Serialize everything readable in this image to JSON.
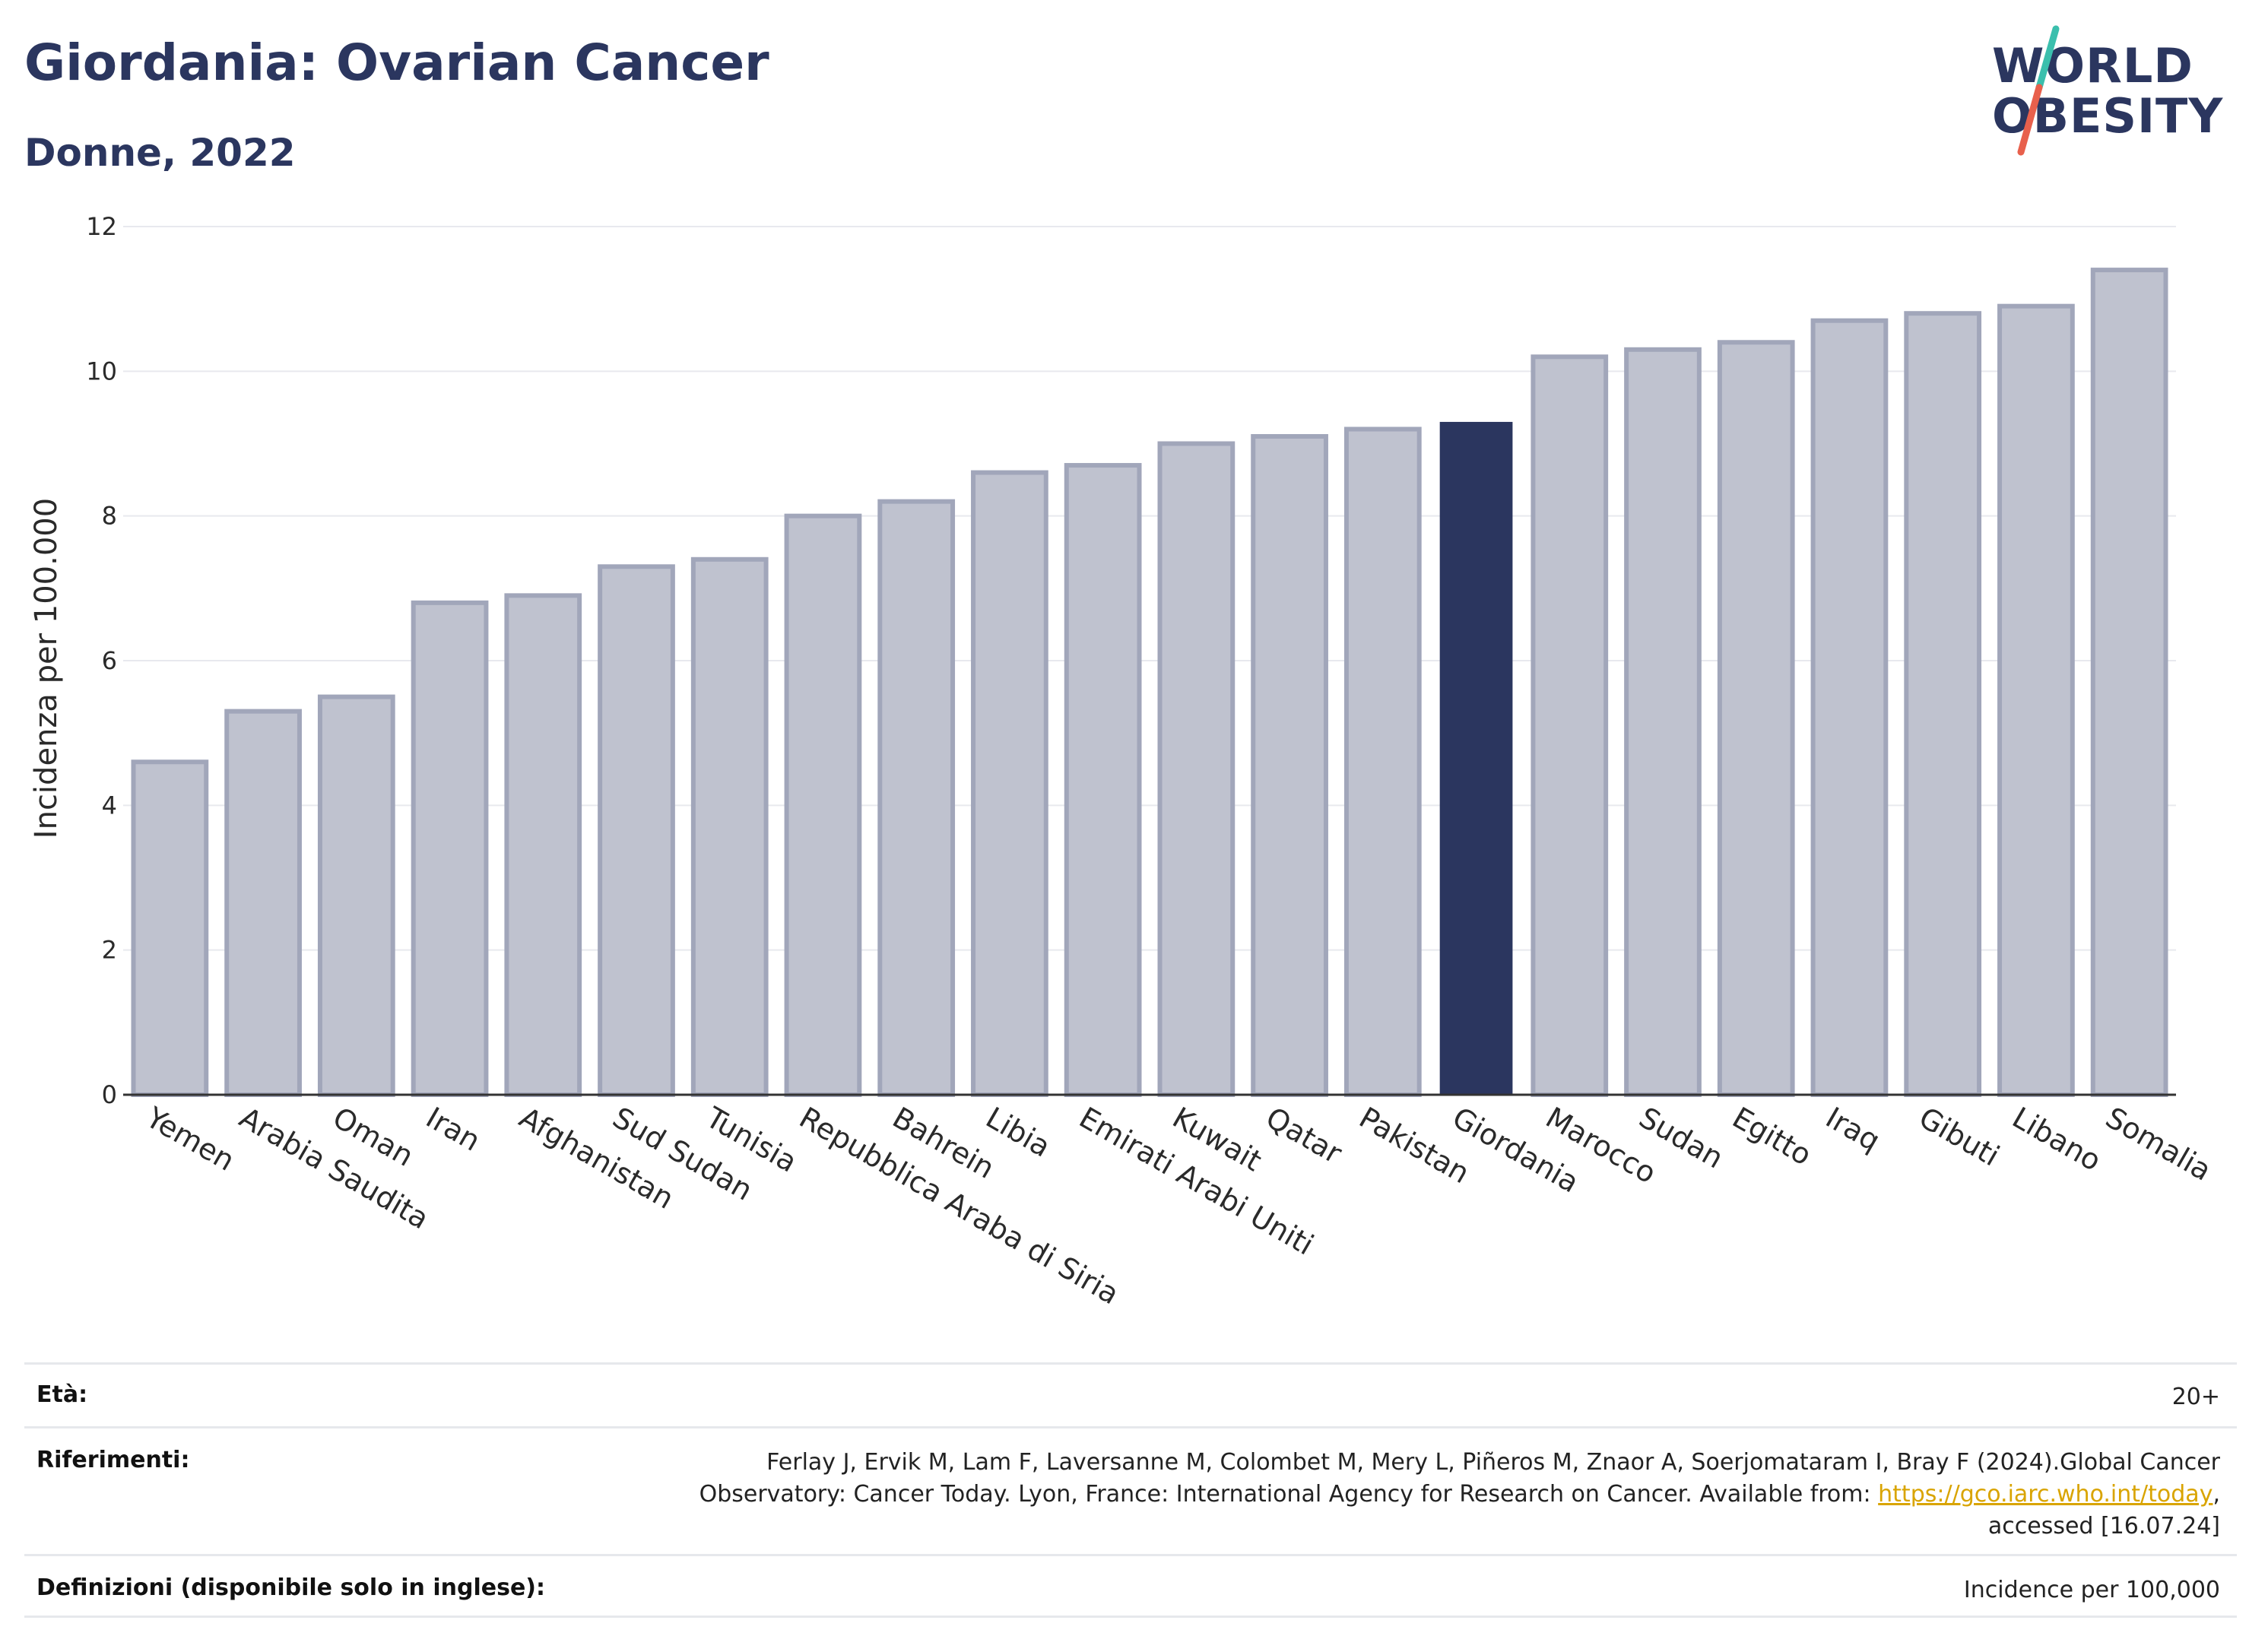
{
  "header": {
    "title": "Giordania: Ovarian Cancer",
    "subtitle": "Donne, 2022"
  },
  "logo": {
    "line1": "WORLD",
    "line2": "OBESITY"
  },
  "chart_data": {
    "type": "bar",
    "ylabel": "Incidenza per 100.000",
    "ylim": [
      0,
      12
    ],
    "yticks": [
      0,
      2,
      4,
      6,
      8,
      10,
      12
    ],
    "grid": true,
    "highlight": "Giordania",
    "colors": {
      "bar": "#bfc2cf",
      "bar_edge": "#a1a6ba",
      "highlight": "#2b365f"
    },
    "categories": [
      "Yemen",
      "Arabia Saudita",
      "Oman",
      "Iran",
      "Afghanistan",
      "Sud Sudan",
      "Tunisia",
      "Repubblica Araba di Siria",
      "Bahrein",
      "Libia",
      "Emirati Arabi Uniti",
      "Kuwait",
      "Qatar",
      "Pakistan",
      "Giordania",
      "Marocco",
      "Sudan",
      "Egitto",
      "Iraq",
      "Gibuti",
      "Libano",
      "Somalia"
    ],
    "values": [
      4.6,
      5.3,
      5.5,
      6.8,
      6.9,
      7.3,
      7.4,
      8.0,
      8.2,
      8.6,
      8.7,
      9.0,
      9.1,
      9.2,
      9.3,
      10.2,
      10.3,
      10.4,
      10.7,
      10.8,
      10.9,
      11.4
    ]
  },
  "info": {
    "age_label": "Età:",
    "age_value": "20+",
    "ref_label": "Riferimenti:",
    "ref_line1": "Ferlay J, Ervik M, Lam F, Laversanne M, Colombet M, Mery L, Piñeros M, Znaor A, Soerjomataram I, Bray F (2024).Global Cancer",
    "ref_line2_pre": "Observatory: Cancer Today. Lyon, France: International Agency for Research on Cancer. Available from: ",
    "ref_link": "https://gco.iarc.who.int/today",
    "ref_line2_post": ",",
    "ref_line3": "accessed [16.07.24]",
    "def_label": "Definizioni (disponibile solo in inglese):",
    "def_value": "Incidence per 100,000"
  }
}
